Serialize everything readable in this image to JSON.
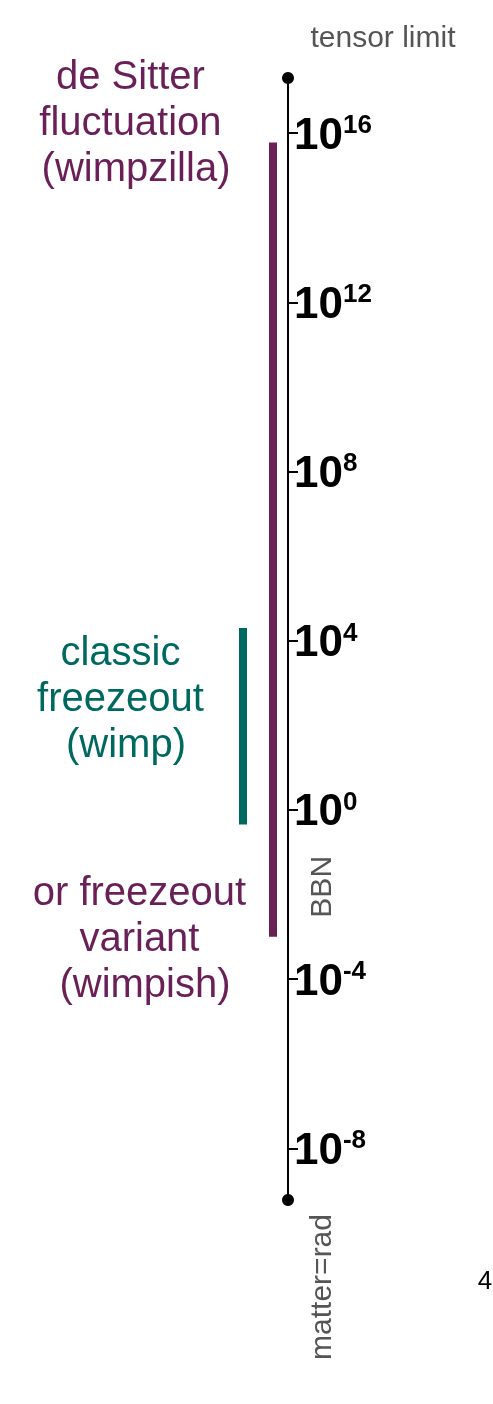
{
  "chart_data": {
    "type": "bar",
    "log": "y",
    "categories": [
      null,
      null
    ],
    "values": [
      20000,
      6000000000000000.0
    ],
    "base": [
      0.45,
      0.001
    ],
    "colors": [
      "#00695f",
      "#6b1f57"
    ],
    "ylim": [
      6e-10,
      2e+17
    ],
    "yticks": [
      {
        "value": 1e-08,
        "label": "10$^{-8}$"
      },
      {
        "value": 0.0001,
        "label": "10$^{-4}$"
      },
      {
        "value": 1,
        "label": "10$^{0}$"
      },
      {
        "value": 10000.0,
        "label": "10$^{4}$"
      },
      {
        "value": 100000000.0,
        "label": "10$^{8}$"
      },
      {
        "value": 1000000000000.0,
        "label": "10$^{12}$"
      },
      {
        "value": 1e+16,
        "label": "10$^{16}$"
      }
    ],
    "grid": false,
    "annotations": [
      "de Sitter fluctuation (wimpzilla)",
      "classic freezeout (wimp)",
      "or freezeout variant (wimpish)",
      "BBN",
      "tensor limit",
      "matter=rad",
      "4"
    ]
  }
}
